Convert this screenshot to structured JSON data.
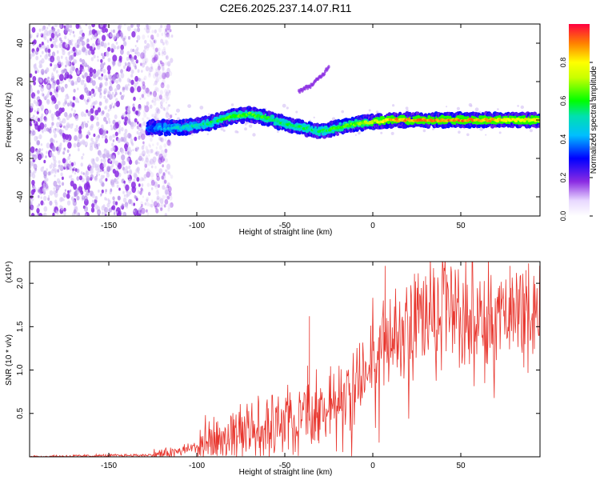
{
  "title": "C2E6.2025.237.14.07.R11",
  "chart_data": [
    {
      "type": "heatmap",
      "name": "spectrogram",
      "xlabel": "Height of straight line (km)",
      "ylabel": "Frequency (Hz)",
      "xlim": [
        -195,
        95
      ],
      "ylim": [
        -50,
        50
      ],
      "x_ticks": [
        -150,
        -100,
        -50,
        0,
        50
      ],
      "y_ticks": [
        -40,
        -20,
        0,
        20,
        40
      ],
      "colorbar": {
        "label": "Normalized spectral amplitude",
        "range": [
          0,
          1
        ],
        "ticks": [
          0.0,
          0.2,
          0.4,
          0.6,
          0.8
        ],
        "tick_labels": [
          "0.0",
          "0.2",
          "0.4",
          "0.6",
          "0.8"
        ]
      },
      "noise_region": {
        "x_from": -195,
        "x_to": -122,
        "f_from": -50,
        "f_to": 50
      },
      "ridge": {
        "x": [
          -128,
          -110,
          -100,
          -90,
          -80,
          -70,
          -60,
          -50,
          -40,
          -30,
          -20,
          -10,
          0,
          10,
          20,
          30,
          40,
          50,
          60,
          70,
          80,
          90,
          95
        ],
        "f": [
          -4,
          -4,
          -3,
          -1,
          2,
          3,
          1,
          -2,
          -4,
          -6,
          -4,
          -2,
          -1,
          0,
          0,
          0,
          0,
          0,
          0,
          0,
          0,
          0,
          0
        ],
        "amplitude": [
          0.35,
          0.45,
          0.5,
          0.55,
          0.6,
          0.62,
          0.6,
          0.55,
          0.55,
          0.55,
          0.6,
          0.65,
          0.7,
          0.85,
          0.88,
          0.9,
          0.9,
          0.9,
          0.88,
          0.85,
          0.8,
          0.78,
          0.75
        ]
      },
      "branch": {
        "x": [
          -42,
          -35,
          -28,
          -25
        ],
        "f": [
          15,
          18,
          24,
          28
        ],
        "amplitude": 0.15
      }
    },
    {
      "type": "line",
      "name": "snr",
      "xlabel": "Height of straight line (km)",
      "ylabel": "SNR (10 * v/v)",
      "y_multiplier": "(x10⁴)",
      "xlim": [
        -195,
        95
      ],
      "ylim": [
        0,
        2.25
      ],
      "x_ticks": [
        -150,
        -100,
        -50,
        0,
        50
      ],
      "y_ticks": [
        0.5,
        1.0,
        1.5,
        2.0
      ],
      "series": [
        {
          "name": "SNR",
          "color": "#e8362e",
          "x_envelope": [
            -195,
            -125,
            -110,
            -100,
            -90,
            -80,
            -70,
            -60,
            -50,
            -40,
            -30,
            -20,
            -10,
            0,
            10,
            20,
            30,
            40,
            50,
            60,
            70,
            80,
            90,
            95
          ],
          "y_envelope": [
            0.0,
            0.02,
            0.06,
            0.12,
            0.16,
            0.22,
            0.32,
            0.38,
            0.42,
            0.48,
            0.58,
            0.65,
            0.8,
            1.05,
            1.3,
            1.5,
            1.65,
            1.7,
            1.65,
            1.55,
            1.58,
            1.65,
            1.7,
            1.72
          ],
          "spikes": [
            {
              "x": -36,
              "y": 1.62
            },
            {
              "x": -37,
              "y": 1.05
            },
            {
              "x": 7,
              "y": 2.2
            },
            {
              "x": 78,
              "y": 2.2
            },
            {
              "x": 87,
              "y": 2.15
            },
            {
              "x": 30,
              "y": 2.08
            },
            {
              "x": 42,
              "y": 2.1
            }
          ]
        }
      ]
    }
  ]
}
